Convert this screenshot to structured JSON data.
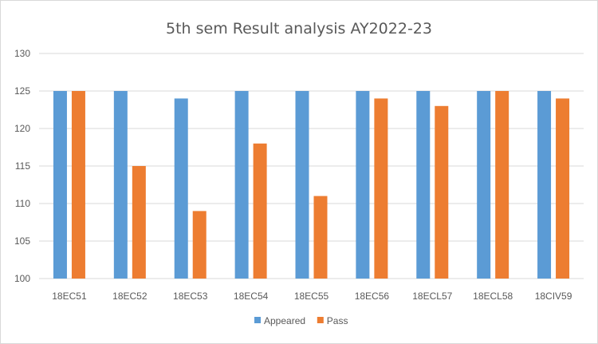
{
  "chart_data": {
    "type": "bar",
    "title": "5th sem Result analysis AY2022-23",
    "xlabel": "",
    "ylabel": "",
    "ylim": [
      100,
      130
    ],
    "yticks": [
      100,
      105,
      110,
      115,
      120,
      125,
      130
    ],
    "grid": true,
    "legend_position": "bottom",
    "categories": [
      "18EC51",
      "18EC52",
      "18EC53",
      "18EC54",
      "18EC55",
      "18EC56",
      "18ECL57",
      "18ECL58",
      "18CIV59"
    ],
    "series": [
      {
        "name": "Appeared",
        "color": "#5b9bd5",
        "values": [
          125,
          125,
          124,
          125,
          125,
          125,
          125,
          125,
          125
        ]
      },
      {
        "name": "Pass",
        "color": "#ed7d31",
        "values": [
          125,
          115,
          109,
          118,
          111,
          124,
          123,
          125,
          124
        ]
      }
    ]
  }
}
